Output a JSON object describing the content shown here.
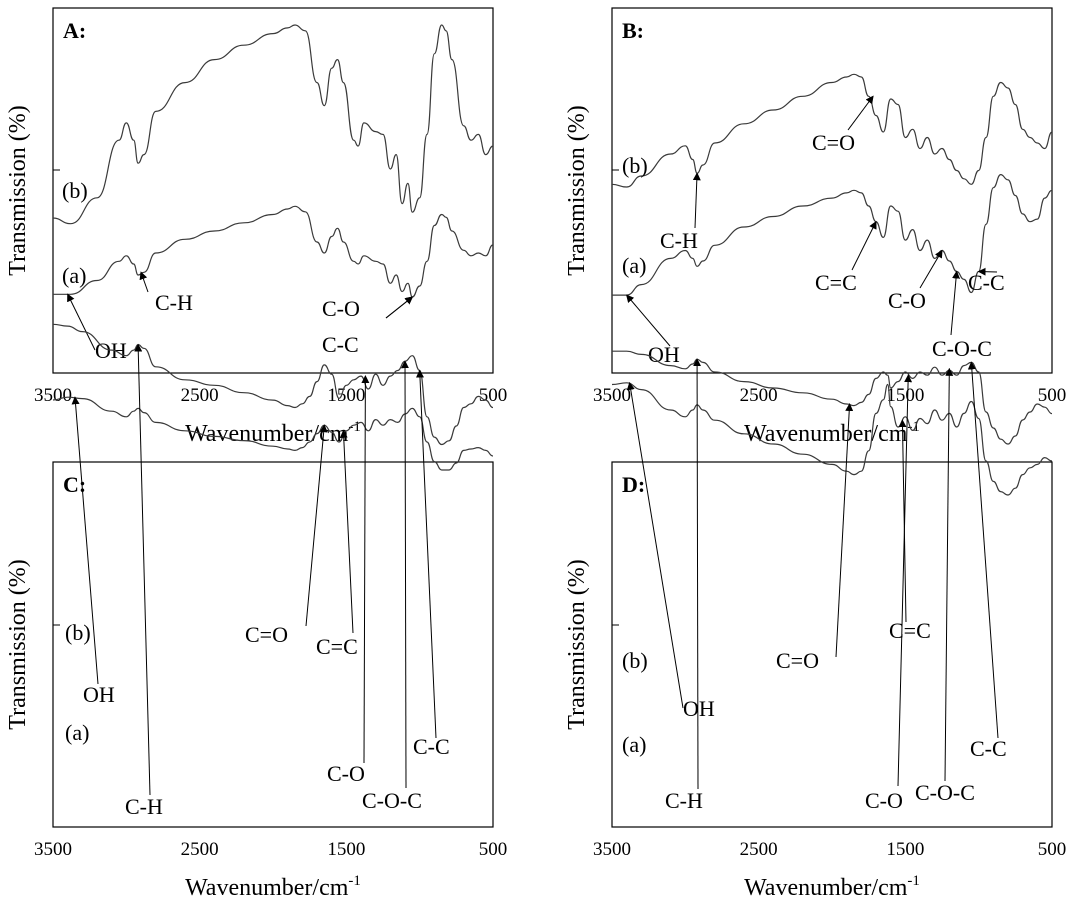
{
  "chart_data": [
    {
      "type": "line",
      "panel": "A:",
      "xlabel": "Wavenumber/cm",
      "xlabel_sup": "-1",
      "ylabel": "Transmission (%)",
      "xlim": [
        3500,
        500
      ],
      "x_reversed": true,
      "xticks": [
        "3500",
        "2500",
        "1500",
        "500"
      ],
      "series": [
        {
          "name": "(b)",
          "x": [
            3500,
            3380,
            3200,
            3050,
            3000,
            2950,
            2920,
            2880,
            2800,
            2600,
            2400,
            2200,
            2000,
            1900,
            1850,
            1780,
            1700,
            1650,
            1600,
            1560,
            1520,
            1450,
            1420,
            1380,
            1300,
            1250,
            1200,
            1160,
            1120,
            1080,
            1050,
            1000,
            950,
            900,
            850,
            820,
            780,
            700,
            650,
            600,
            550,
            500
          ],
          "y": [
            0.33,
            0.31,
            0.4,
            0.6,
            0.66,
            0.6,
            0.52,
            0.55,
            0.7,
            0.8,
            0.88,
            0.93,
            0.97,
            0.99,
            1.0,
            0.98,
            0.8,
            0.72,
            0.85,
            0.88,
            0.8,
            0.6,
            0.58,
            0.66,
            0.63,
            0.62,
            0.5,
            0.55,
            0.38,
            0.45,
            0.35,
            0.4,
            0.62,
            0.9,
            1.0,
            0.98,
            0.88,
            0.65,
            0.6,
            0.62,
            0.55,
            0.58
          ]
        },
        {
          "name": "(a)",
          "x": [
            3500,
            3380,
            3200,
            3050,
            3000,
            2950,
            2920,
            2880,
            2800,
            2600,
            2400,
            2200,
            2000,
            1900,
            1850,
            1780,
            1700,
            1650,
            1600,
            1560,
            1520,
            1450,
            1420,
            1380,
            1300,
            1250,
            1200,
            1160,
            1120,
            1080,
            1050,
            1000,
            950,
            900,
            850,
            820,
            780,
            700,
            650,
            600,
            550,
            500
          ],
          "y": [
            0.13,
            0.13,
            0.18,
            0.25,
            0.27,
            0.24,
            0.2,
            0.21,
            0.28,
            0.33,
            0.36,
            0.39,
            0.42,
            0.44,
            0.45,
            0.43,
            0.32,
            0.28,
            0.34,
            0.37,
            0.32,
            0.25,
            0.24,
            0.27,
            0.25,
            0.24,
            0.17,
            0.2,
            0.14,
            0.17,
            0.12,
            0.16,
            0.25,
            0.38,
            0.42,
            0.41,
            0.36,
            0.29,
            0.27,
            0.28,
            0.27,
            0.31
          ]
        }
      ],
      "annotations": [
        {
          "text": "OH",
          "x": 3400,
          "y": 0.13
        },
        {
          "text": "C-H",
          "x": 2900,
          "y": 0.21
        },
        {
          "text": "C-O",
          "x": 1050,
          "y": 0.12
        },
        {
          "text": "C-C",
          "x": 1050,
          "y": 0.12
        }
      ]
    },
    {
      "type": "line",
      "panel": "B:",
      "xlabel": "Wavenumber/cm",
      "xlabel_sup": "-1",
      "ylabel": "Transmission (%)",
      "xlim": [
        3500,
        500
      ],
      "x_reversed": true,
      "xticks": [
        "3500",
        "2500",
        "1500",
        "500"
      ],
      "series": [
        {
          "name": "(b)",
          "x": [
            3500,
            3400,
            3300,
            3100,
            3000,
            2950,
            2920,
            2880,
            2800,
            2600,
            2400,
            2200,
            2000,
            1900,
            1850,
            1800,
            1750,
            1700,
            1650,
            1600,
            1550,
            1500,
            1450,
            1400,
            1350,
            1300,
            1250,
            1200,
            1150,
            1100,
            1050,
            1000,
            950,
            900,
            850,
            800,
            750,
            700,
            650,
            600,
            550,
            500
          ],
          "y": [
            0.53,
            0.52,
            0.56,
            0.64,
            0.67,
            0.62,
            0.57,
            0.6,
            0.68,
            0.75,
            0.8,
            0.85,
            0.9,
            0.92,
            0.93,
            0.92,
            0.85,
            0.78,
            0.72,
            0.84,
            0.82,
            0.7,
            0.73,
            0.66,
            0.7,
            0.64,
            0.66,
            0.62,
            0.58,
            0.55,
            0.53,
            0.58,
            0.7,
            0.85,
            0.9,
            0.88,
            0.82,
            0.73,
            0.7,
            0.68,
            0.66,
            0.72
          ]
        },
        {
          "name": "(a)",
          "x": [
            3500,
            3400,
            3300,
            3100,
            3000,
            2950,
            2920,
            2880,
            2800,
            2600,
            2400,
            2200,
            2000,
            1900,
            1850,
            1800,
            1750,
            1700,
            1650,
            1600,
            1550,
            1500,
            1450,
            1400,
            1350,
            1300,
            1250,
            1200,
            1150,
            1100,
            1050,
            1000,
            950,
            900,
            850,
            800,
            750,
            700,
            650,
            600,
            550,
            500
          ],
          "y": [
            0.16,
            0.16,
            0.2,
            0.3,
            0.33,
            0.3,
            0.27,
            0.29,
            0.35,
            0.42,
            0.46,
            0.5,
            0.53,
            0.55,
            0.56,
            0.55,
            0.5,
            0.44,
            0.38,
            0.5,
            0.48,
            0.37,
            0.41,
            0.33,
            0.37,
            0.3,
            0.33,
            0.29,
            0.25,
            0.22,
            0.17,
            0.25,
            0.43,
            0.57,
            0.62,
            0.6,
            0.54,
            0.47,
            0.44,
            0.45,
            0.53,
            0.56
          ]
        }
      ],
      "annotations": [
        {
          "text": "C=O",
          "x": 1720,
          "y": 0.85
        },
        {
          "text": "C-H",
          "x": 2920,
          "y": 0.57
        },
        {
          "text": "C=C",
          "x": 1700,
          "y": 0.44
        },
        {
          "text": "C-O",
          "x": 1250,
          "y": 0.33
        },
        {
          "text": "C-C",
          "x": 1000,
          "y": 0.25
        },
        {
          "text": "OH",
          "x": 3400,
          "y": 0.16
        },
        {
          "text": "C-O-C",
          "x": 1150,
          "y": 0.25
        }
      ]
    },
    {
      "type": "line",
      "panel": "C:",
      "xlabel": "Wavenumber/cm",
      "xlabel_sup": "-1",
      "ylabel": "Transmission (%)",
      "xlim": [
        3500,
        500
      ],
      "x_reversed": true,
      "xticks": [
        "3500",
        "2500",
        "1500",
        "500"
      ],
      "series": [
        {
          "name": "(b)",
          "x": [
            3500,
            3400,
            3300,
            3100,
            3000,
            2950,
            2920,
            2880,
            2800,
            2600,
            2400,
            2200,
            2000,
            1900,
            1850,
            1800,
            1750,
            1700,
            1650,
            1600,
            1550,
            1500,
            1450,
            1400,
            1350,
            1300,
            1250,
            1200,
            1150,
            1100,
            1050,
            1000,
            950,
            900,
            850,
            800,
            750,
            700,
            650,
            600,
            550,
            500
          ],
          "y": [
            0.5,
            0.48,
            0.49,
            0.58,
            0.62,
            0.58,
            0.56,
            0.59,
            0.66,
            0.72,
            0.76,
            0.79,
            0.83,
            0.85,
            0.86,
            0.84,
            0.8,
            0.74,
            0.68,
            0.73,
            0.8,
            0.72,
            0.68,
            0.66,
            0.72,
            0.64,
            0.68,
            0.64,
            0.66,
            0.6,
            0.56,
            0.62,
            0.8,
            0.94,
            1.0,
            1.0,
            0.95,
            0.86,
            0.85,
            0.84,
            0.86,
            0.9
          ]
        },
        {
          "name": "(a)",
          "x": [
            3500,
            3400,
            3300,
            3100,
            3000,
            2950,
            2920,
            2880,
            2800,
            2600,
            2400,
            2200,
            2000,
            1900,
            1850,
            1800,
            1750,
            1700,
            1650,
            1600,
            1550,
            1500,
            1450,
            1400,
            1350,
            1300,
            1250,
            1200,
            1150,
            1100,
            1050,
            1000,
            950,
            900,
            850,
            800,
            750,
            700,
            650,
            600,
            550,
            500
          ],
          "y": [
            0.05,
            0.06,
            0.09,
            0.19,
            0.22,
            0.19,
            0.16,
            0.18,
            0.28,
            0.35,
            0.38,
            0.42,
            0.46,
            0.49,
            0.5,
            0.48,
            0.44,
            0.36,
            0.27,
            0.32,
            0.45,
            0.38,
            0.35,
            0.33,
            0.4,
            0.32,
            0.38,
            0.33,
            0.3,
            0.25,
            0.22,
            0.3,
            0.55,
            0.66,
            0.7,
            0.68,
            0.6,
            0.5,
            0.48,
            0.44,
            0.46,
            0.5
          ]
        }
      ],
      "annotations": [
        {
          "text": "C=O",
          "x": 1650,
          "y": 0.68
        },
        {
          "text": "C=C",
          "x": 1520,
          "y": 0.72
        },
        {
          "text": "OH",
          "x": 3350,
          "y": 0.48
        },
        {
          "text": "C-H",
          "x": 2920,
          "y": 0.16
        },
        {
          "text": "C-O",
          "x": 1370,
          "y": 0.33
        },
        {
          "text": "C-C",
          "x": 1000,
          "y": 0.3
        },
        {
          "text": "C-O-C",
          "x": 1100,
          "y": 0.25
        }
      ]
    },
    {
      "type": "line",
      "panel": "D:",
      "xlabel": "Wavenumber/cm",
      "xlabel_sup": "-1",
      "ylabel": "Transmission (%)",
      "xlim": [
        3500,
        500
      ],
      "x_reversed": true,
      "xticks": [
        "3500",
        "2500",
        "1500",
        "500"
      ],
      "series": [
        {
          "name": "(b)",
          "x": [
            3500,
            3400,
            3300,
            3100,
            3000,
            2950,
            2920,
            2880,
            2800,
            2600,
            2400,
            2200,
            2000,
            1900,
            1850,
            1800,
            1750,
            1700,
            1650,
            1620,
            1600,
            1550,
            1500,
            1450,
            1400,
            1350,
            1300,
            1250,
            1200,
            1150,
            1100,
            1050,
            1000,
            950,
            900,
            850,
            800,
            750,
            700,
            650,
            600,
            550,
            500
          ],
          "y": [
            0.35,
            0.34,
            0.38,
            0.5,
            0.54,
            0.5,
            0.47,
            0.5,
            0.56,
            0.64,
            0.7,
            0.76,
            0.82,
            0.86,
            0.88,
            0.86,
            0.74,
            0.52,
            0.44,
            0.35,
            0.48,
            0.6,
            0.54,
            0.62,
            0.55,
            0.58,
            0.5,
            0.56,
            0.52,
            0.6,
            0.52,
            0.45,
            0.55,
            0.8,
            0.92,
            0.98,
            1.0,
            0.96,
            0.88,
            0.84,
            0.82,
            0.78,
            0.8
          ]
        },
        {
          "name": "(a)",
          "x": [
            3500,
            3400,
            3300,
            3100,
            3000,
            2950,
            2920,
            2880,
            2800,
            2600,
            2400,
            2200,
            2000,
            1900,
            1850,
            1800,
            1750,
            1700,
            1650,
            1620,
            1600,
            1550,
            1500,
            1450,
            1400,
            1350,
            1300,
            1250,
            1200,
            1150,
            1100,
            1050,
            1000,
            950,
            900,
            850,
            800,
            750,
            700,
            650,
            600,
            550,
            500
          ],
          "y": [
            0.07,
            0.07,
            0.09,
            0.16,
            0.18,
            0.15,
            0.12,
            0.14,
            0.2,
            0.26,
            0.3,
            0.33,
            0.37,
            0.4,
            0.41,
            0.39,
            0.34,
            0.24,
            0.2,
            0.22,
            0.3,
            0.26,
            0.2,
            0.24,
            0.2,
            0.22,
            0.17,
            0.22,
            0.19,
            0.22,
            0.16,
            0.14,
            0.2,
            0.45,
            0.55,
            0.62,
            0.65,
            0.6,
            0.5,
            0.45,
            0.4,
            0.42,
            0.46
          ]
        }
      ],
      "annotations": [
        {
          "text": "C=O",
          "x": 1880,
          "y": 0.4
        },
        {
          "text": "C=C",
          "x": 1520,
          "y": 0.56
        },
        {
          "text": "OH",
          "x": 3380,
          "y": 0.34
        },
        {
          "text": "C-H",
          "x": 2920,
          "y": 0.12
        },
        {
          "text": "C-O",
          "x": 1480,
          "y": 0.22
        },
        {
          "text": "C-C",
          "x": 1050,
          "y": 0.14
        },
        {
          "text": "C-O-C",
          "x": 1200,
          "y": 0.18
        }
      ]
    }
  ]
}
